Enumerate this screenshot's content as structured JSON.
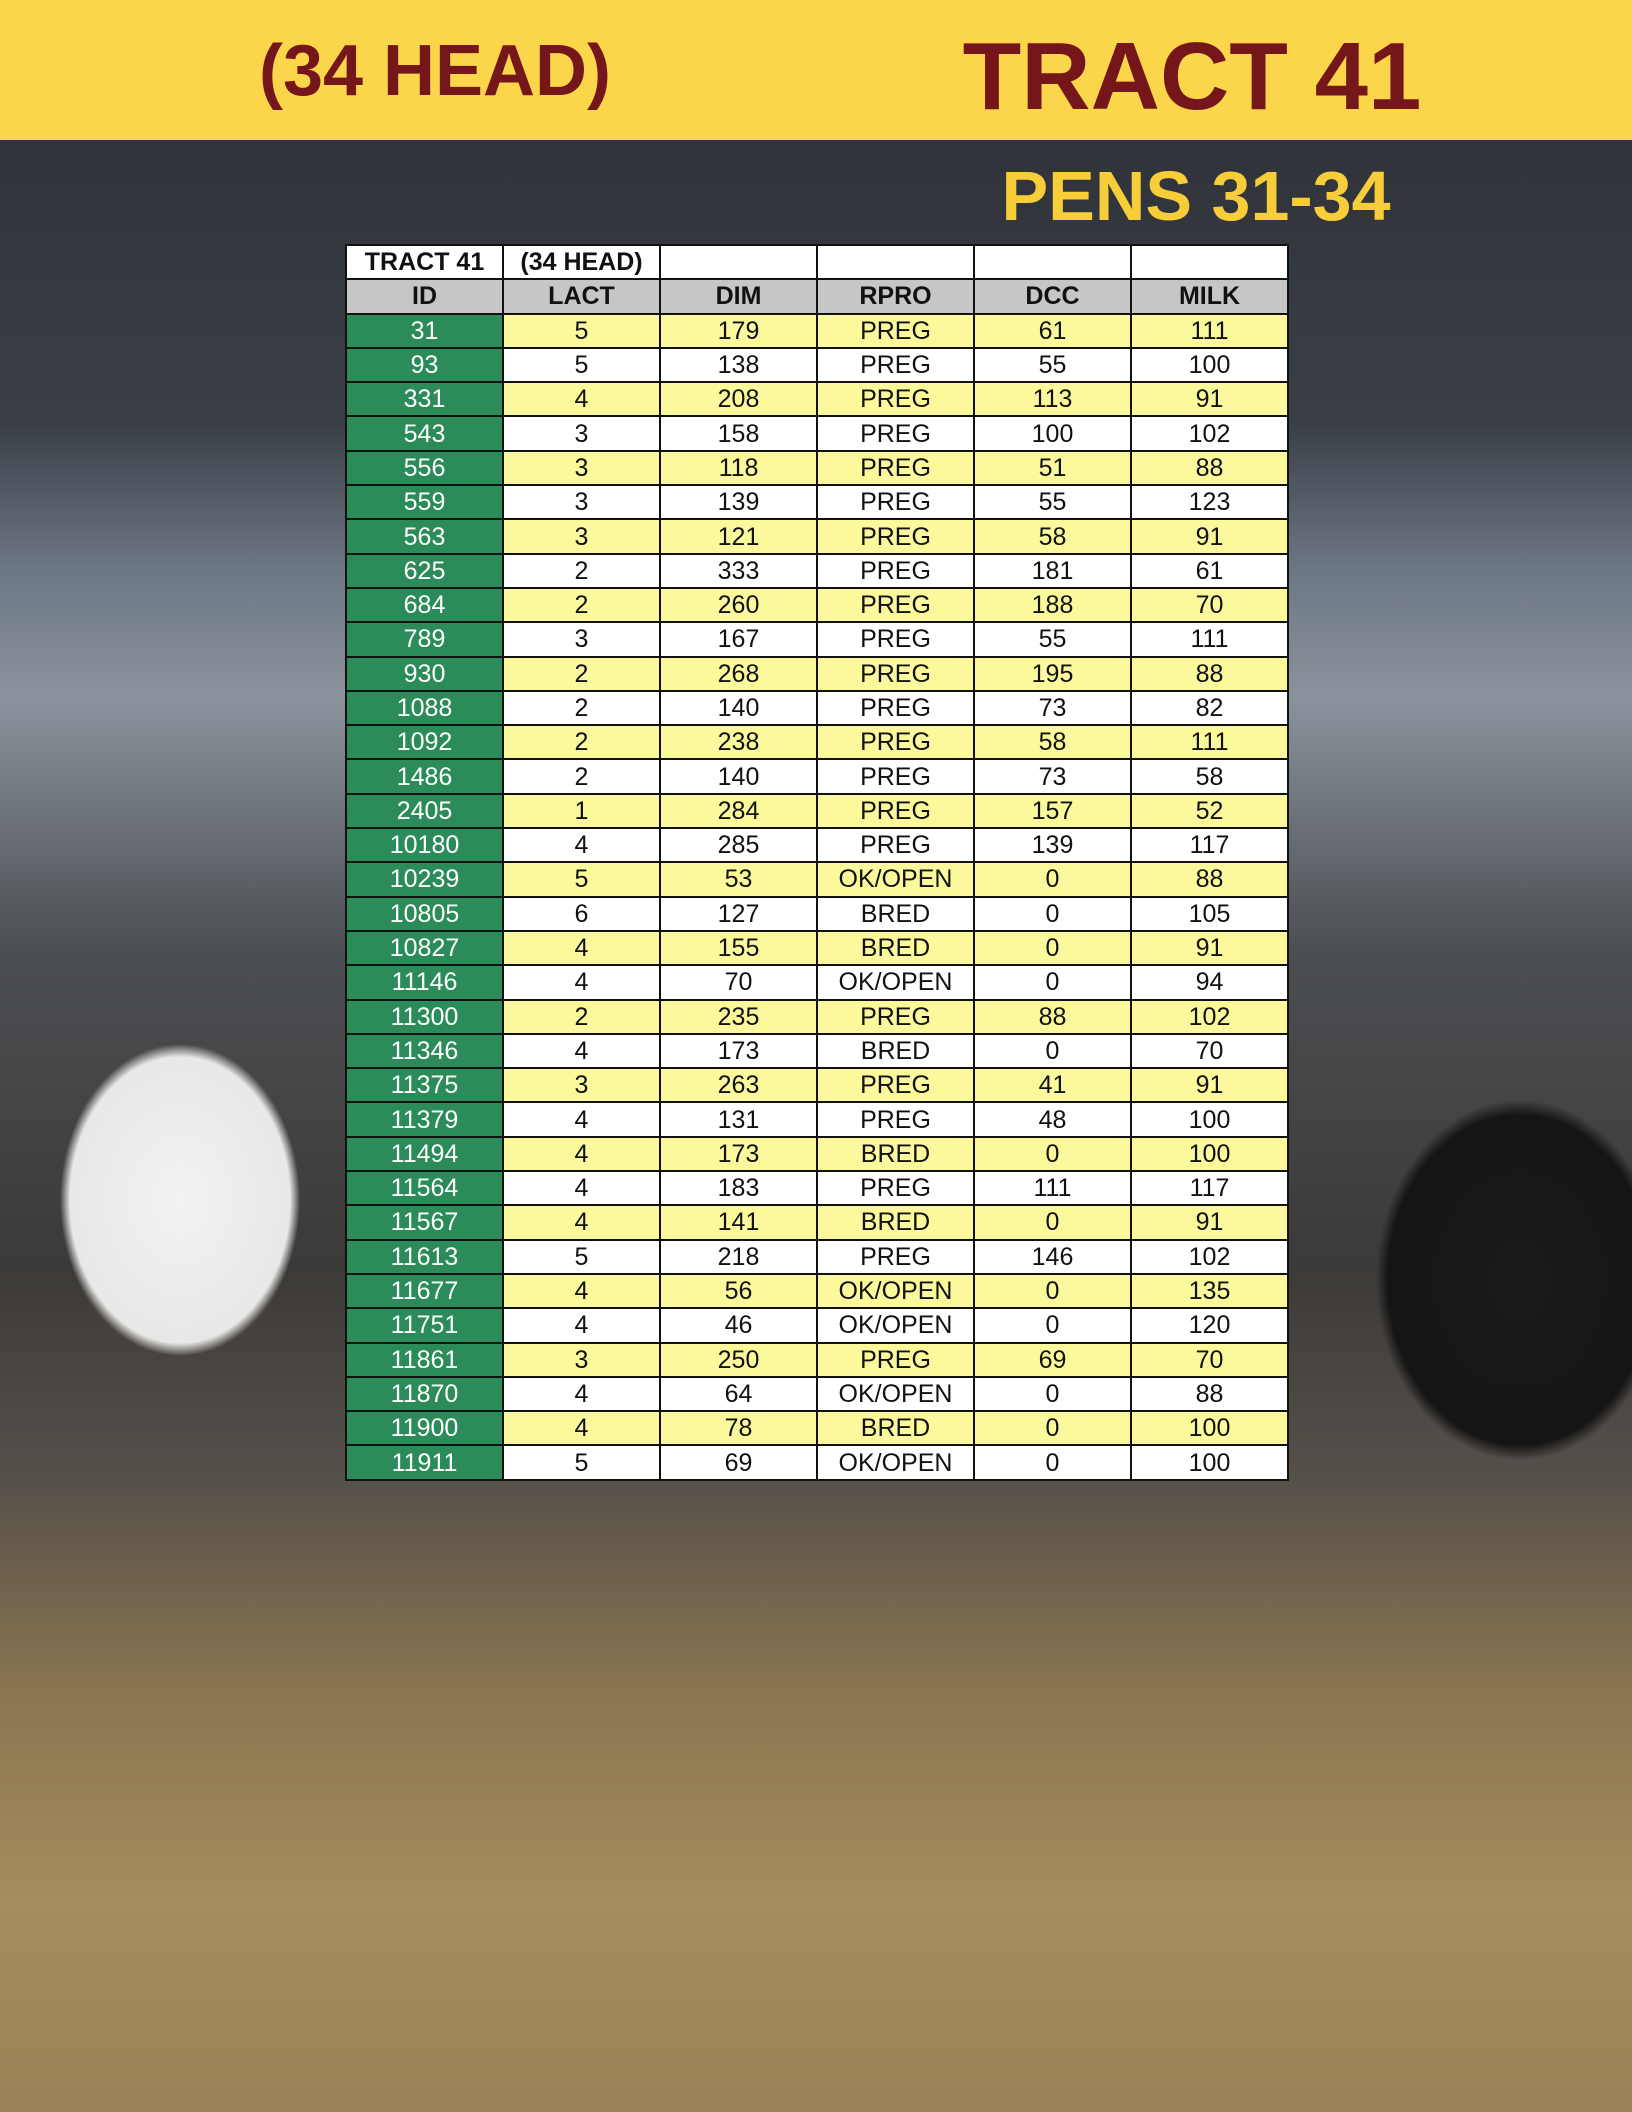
{
  "header": {
    "left": "(34 HEAD)",
    "title": "TRACT 41"
  },
  "subtitle": "PENS 31-34",
  "table": {
    "top_row": [
      "TRACT 41",
      "(34 HEAD)"
    ],
    "columns": [
      "ID",
      "LACT",
      "DIM",
      "RPRO",
      "DCC",
      "MILK"
    ],
    "rows": [
      [
        "31",
        "5",
        "179",
        "PREG",
        "61",
        "111"
      ],
      [
        "93",
        "5",
        "138",
        "PREG",
        "55",
        "100"
      ],
      [
        "331",
        "4",
        "208",
        "PREG",
        "113",
        "91"
      ],
      [
        "543",
        "3",
        "158",
        "PREG",
        "100",
        "102"
      ],
      [
        "556",
        "3",
        "118",
        "PREG",
        "51",
        "88"
      ],
      [
        "559",
        "3",
        "139",
        "PREG",
        "55",
        "123"
      ],
      [
        "563",
        "3",
        "121",
        "PREG",
        "58",
        "91"
      ],
      [
        "625",
        "2",
        "333",
        "PREG",
        "181",
        "61"
      ],
      [
        "684",
        "2",
        "260",
        "PREG",
        "188",
        "70"
      ],
      [
        "789",
        "3",
        "167",
        "PREG",
        "55",
        "111"
      ],
      [
        "930",
        "2",
        "268",
        "PREG",
        "195",
        "88"
      ],
      [
        "1088",
        "2",
        "140",
        "PREG",
        "73",
        "82"
      ],
      [
        "1092",
        "2",
        "238",
        "PREG",
        "58",
        "111"
      ],
      [
        "1486",
        "2",
        "140",
        "PREG",
        "73",
        "58"
      ],
      [
        "2405",
        "1",
        "284",
        "PREG",
        "157",
        "52"
      ],
      [
        "10180",
        "4",
        "285",
        "PREG",
        "139",
        "117"
      ],
      [
        "10239",
        "5",
        "53",
        "OK/OPEN",
        "0",
        "88"
      ],
      [
        "10805",
        "6",
        "127",
        "BRED",
        "0",
        "105"
      ],
      [
        "10827",
        "4",
        "155",
        "BRED",
        "0",
        "91"
      ],
      [
        "11146",
        "4",
        "70",
        "OK/OPEN",
        "0",
        "94"
      ],
      [
        "11300",
        "2",
        "235",
        "PREG",
        "88",
        "102"
      ],
      [
        "11346",
        "4",
        "173",
        "BRED",
        "0",
        "70"
      ],
      [
        "11375",
        "3",
        "263",
        "PREG",
        "41",
        "91"
      ],
      [
        "11379",
        "4",
        "131",
        "PREG",
        "48",
        "100"
      ],
      [
        "11494",
        "4",
        "173",
        "BRED",
        "0",
        "100"
      ],
      [
        "11564",
        "4",
        "183",
        "PREG",
        "111",
        "117"
      ],
      [
        "11567",
        "4",
        "141",
        "BRED",
        "0",
        "91"
      ],
      [
        "11613",
        "5",
        "218",
        "PREG",
        "146",
        "102"
      ],
      [
        "11677",
        "4",
        "56",
        "OK/OPEN",
        "0",
        "135"
      ],
      [
        "11751",
        "4",
        "46",
        "OK/OPEN",
        "0",
        "120"
      ],
      [
        "11861",
        "3",
        "250",
        "PREG",
        "69",
        "70"
      ],
      [
        "11870",
        "4",
        "64",
        "OK/OPEN",
        "0",
        "88"
      ],
      [
        "11900",
        "4",
        "78",
        "BRED",
        "0",
        "100"
      ],
      [
        "11911",
        "5",
        "69",
        "OK/OPEN",
        "0",
        "100"
      ]
    ]
  }
}
